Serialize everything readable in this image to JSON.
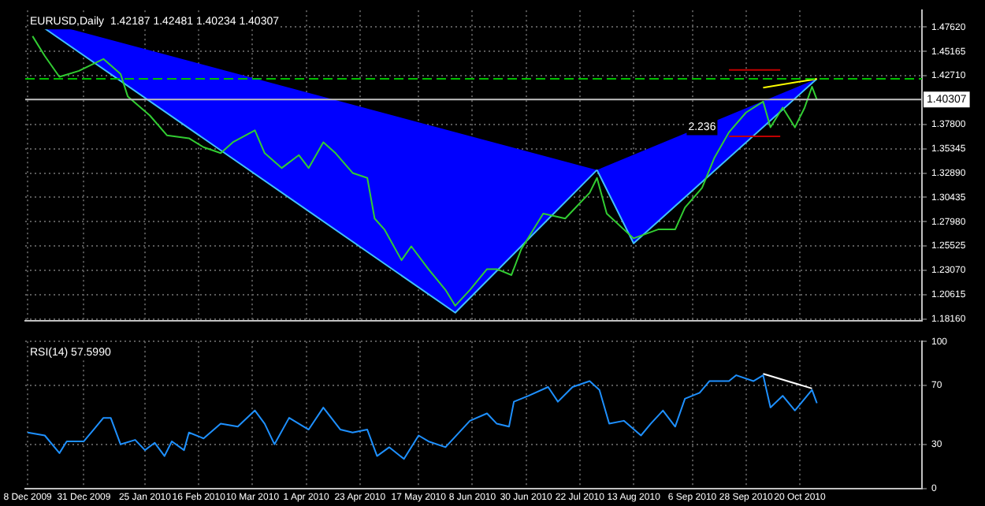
{
  "chart_data": [
    {
      "type": "line",
      "title": "EURUSD,Daily  1.42187 1.42481 1.40234 1.40307",
      "xlim": [
        "2009-12-07",
        "2010-12-09"
      ],
      "xticks": [
        {
          "value": "2009-12-08",
          "label": null
        },
        {
          "value": "2009-12-31",
          "label": null
        },
        {
          "value": "2010-01-25",
          "label": null
        },
        {
          "value": "2010-02-16",
          "label": null
        },
        {
          "value": "2010-03-10",
          "label": null
        },
        {
          "value": "2010-04-01",
          "label": null
        },
        {
          "value": "2010-04-23",
          "label": null
        },
        {
          "value": "2010-05-17",
          "label": null
        },
        {
          "value": "2010-06-08",
          "label": null
        },
        {
          "value": "2010-06-30",
          "label": null
        },
        {
          "value": "2010-07-22",
          "label": null
        },
        {
          "value": "2010-08-13",
          "label": null
        },
        {
          "value": "2010-09-06",
          "label": null
        },
        {
          "value": "2010-09-28",
          "label": null
        },
        {
          "value": "2010-10-20",
          "label": null
        }
      ],
      "ylim": [
        1.18,
        1.493
      ],
      "yticks": [
        {
          "value": 1.1816,
          "label": "1.18160"
        },
        {
          "value": 1.20615,
          "label": "1.20615"
        },
        {
          "value": 1.2307,
          "label": "1.23070"
        },
        {
          "value": 1.25525,
          "label": "1.25525"
        },
        {
          "value": 1.2798,
          "label": "1.27980"
        },
        {
          "value": 1.30435,
          "label": "1.30435"
        },
        {
          "value": 1.3289,
          "label": "1.32890"
        },
        {
          "value": 1.35345,
          "label": "1.35345"
        },
        {
          "value": 1.378,
          "label": "1.37800"
        },
        {
          "value": 1.4271,
          "label": "1.42710"
        },
        {
          "value": 1.45165,
          "label": "1.45165"
        },
        {
          "value": 1.4762,
          "label": "1.47620"
        }
      ],
      "tick_labels": "y",
      "grid": true,
      "series": [
        {
          "type": "area",
          "color": "#0000ff",
          "x": [
            "2009-12-09",
            "2010-06-01",
            "2010-07-29"
          ],
          "values": [
            1.485,
            1.188,
            1.332
          ]
        },
        {
          "type": "area",
          "color": "#0000ff",
          "x": [
            "2010-07-29",
            "2010-08-13",
            "2010-10-27"
          ],
          "values": [
            1.332,
            1.258,
            1.424
          ]
        },
        {
          "type": "line",
          "color": "#32cd32",
          "x": [
            "2009-12-10",
            "2009-12-15",
            "2009-12-21",
            "2009-12-29",
            "2010-01-08",
            "2010-01-15",
            "2010-01-18",
            "2010-01-27",
            "2010-02-03",
            "2010-02-12",
            "2010-02-18",
            "2010-02-25",
            "2010-03-02",
            "2010-03-11",
            "2010-03-15",
            "2010-03-22",
            "2010-03-29",
            "2010-04-02",
            "2010-04-08",
            "2010-04-13",
            "2010-04-20",
            "2010-04-26",
            "2010-04-29",
            "2010-05-03",
            "2010-05-10",
            "2010-05-14",
            "2010-05-21",
            "2010-05-28",
            "2010-06-01",
            "2010-06-07",
            "2010-06-14",
            "2010-06-18",
            "2010-06-24",
            "2010-06-28",
            "2010-07-07",
            "2010-07-16",
            "2010-07-26",
            "2010-07-29",
            "2010-08-02",
            "2010-08-09",
            "2010-08-13",
            "2010-08-23",
            "2010-08-30",
            "2010-09-03",
            "2010-09-10",
            "2010-09-15",
            "2010-09-21",
            "2010-09-28",
            "2010-10-05",
            "2010-10-08",
            "2010-10-13",
            "2010-10-18",
            "2010-10-22",
            "2010-10-25",
            "2010-10-27"
          ],
          "values": [
            1.467,
            1.447,
            1.426,
            1.432,
            1.444,
            1.429,
            1.406,
            1.387,
            1.367,
            1.364,
            1.355,
            1.349,
            1.36,
            1.372,
            1.349,
            1.334,
            1.347,
            1.334,
            1.36,
            1.349,
            1.329,
            1.324,
            1.283,
            1.272,
            1.241,
            1.255,
            1.232,
            1.211,
            1.195,
            1.211,
            1.232,
            1.232,
            1.226,
            1.252,
            1.288,
            1.283,
            1.309,
            1.324,
            1.288,
            1.272,
            1.263,
            1.272,
            1.272,
            1.294,
            1.314,
            1.344,
            1.37,
            1.39,
            1.401,
            1.375,
            1.395,
            1.375,
            1.395,
            1.416,
            1.403
          ]
        },
        {
          "type": "line",
          "color": "#ffff00",
          "x": [
            "2010-10-05",
            "2010-10-27"
          ],
          "values": [
            1.415,
            1.424
          ]
        },
        {
          "type": "line",
          "color": "#c00000",
          "x": [
            "2010-09-21",
            "2010-10-12"
          ],
          "values": [
            1.433,
            1.433
          ]
        },
        {
          "type": "line",
          "color": "#c00000",
          "x": [
            "2010-09-21",
            "2010-10-12"
          ],
          "values": [
            1.366,
            1.366
          ]
        }
      ],
      "ref_lines": [
        {
          "axis": "y",
          "value": 1.424,
          "color": "#00c000",
          "line_style": "dashed"
        },
        {
          "axis": "y",
          "value": 1.40307,
          "label": "1.40307",
          "color": "#c0c0c0"
        }
      ],
      "annotations": [
        {
          "text": "2.236",
          "x": "2010-09-10",
          "y": 1.375
        }
      ]
    },
    {
      "type": "line",
      "title": "RSI(14) 57.5990",
      "xlim": [
        "2009-12-07",
        "2010-12-09"
      ],
      "xticks": [
        {
          "value": "2009-12-08",
          "label": "8 Dec 2009"
        },
        {
          "value": "2009-12-31",
          "label": "31 Dec 2009"
        },
        {
          "value": "2010-01-25",
          "label": "25 Jan 2010"
        },
        {
          "value": "2010-02-16",
          "label": "16 Feb 2010"
        },
        {
          "value": "2010-03-10",
          "label": "10 Mar 2010"
        },
        {
          "value": "2010-04-01",
          "label": "1 Apr 2010"
        },
        {
          "value": "2010-04-23",
          "label": "23 Apr 2010"
        },
        {
          "value": "2010-05-17",
          "label": "17 May 2010"
        },
        {
          "value": "2010-06-08",
          "label": "8 Jun 2010"
        },
        {
          "value": "2010-06-30",
          "label": "30 Jun 2010"
        },
        {
          "value": "2010-07-22",
          "label": "22 Jul 2010"
        },
        {
          "value": "2010-08-13",
          "label": "13 Aug 2010"
        },
        {
          "value": "2010-09-06",
          "label": "6 Sep 2010"
        },
        {
          "value": "2010-09-28",
          "label": "28 Sep 2010"
        },
        {
          "value": "2010-10-20",
          "label": "20 Oct 2010"
        }
      ],
      "ylim": [
        0,
        100
      ],
      "yticks": [
        0,
        30,
        70,
        100
      ],
      "grid": true,
      "series": [
        {
          "type": "line",
          "color": "#1e90ff",
          "x": [
            "2009-12-08",
            "2009-12-15",
            "2009-12-21",
            "2009-12-24",
            "2009-12-31",
            "2010-01-04",
            "2010-01-08",
            "2010-01-11",
            "2010-01-15",
            "2010-01-21",
            "2010-01-25",
            "2010-01-29",
            "2010-02-02",
            "2010-02-05",
            "2010-02-10",
            "2010-02-12",
            "2010-02-18",
            "2010-02-25",
            "2010-03-04",
            "2010-03-11",
            "2010-03-15",
            "2010-03-19",
            "2010-03-25",
            "2010-04-02",
            "2010-04-08",
            "2010-04-15",
            "2010-04-20",
            "2010-04-26",
            "2010-04-30",
            "2010-05-05",
            "2010-05-11",
            "2010-05-17",
            "2010-05-21",
            "2010-05-28",
            "2010-06-07",
            "2010-06-14",
            "2010-06-18",
            "2010-06-23",
            "2010-06-25",
            "2010-07-01",
            "2010-07-09",
            "2010-07-13",
            "2010-07-19",
            "2010-07-26",
            "2010-07-30",
            "2010-08-03",
            "2010-08-09",
            "2010-08-16",
            "2010-08-20",
            "2010-08-25",
            "2010-08-30",
            "2010-09-03",
            "2010-09-09",
            "2010-09-13",
            "2010-09-21",
            "2010-09-24",
            "2010-10-01",
            "2010-10-05",
            "2010-10-08",
            "2010-10-13",
            "2010-10-18",
            "2010-10-21",
            "2010-10-25",
            "2010-10-27"
          ],
          "values": [
            38,
            36,
            24,
            32,
            32,
            40,
            48,
            48,
            30,
            33,
            26,
            31,
            22,
            32,
            26,
            38,
            34,
            44,
            42,
            53,
            44,
            30,
            48,
            40,
            55,
            40,
            38,
            40,
            22,
            28,
            20,
            36,
            32,
            28,
            46,
            51,
            44,
            42,
            59,
            63,
            69,
            59,
            69,
            73,
            67,
            44,
            46,
            36,
            44,
            53,
            42,
            61,
            65,
            73,
            73,
            77,
            73,
            77,
            55,
            63,
            53,
            59,
            67,
            58
          ]
        },
        {
          "type": "line",
          "color": "#ffffff",
          "x": [
            "2010-10-05",
            "2010-10-25"
          ],
          "values": [
            78,
            68
          ]
        }
      ]
    }
  ]
}
